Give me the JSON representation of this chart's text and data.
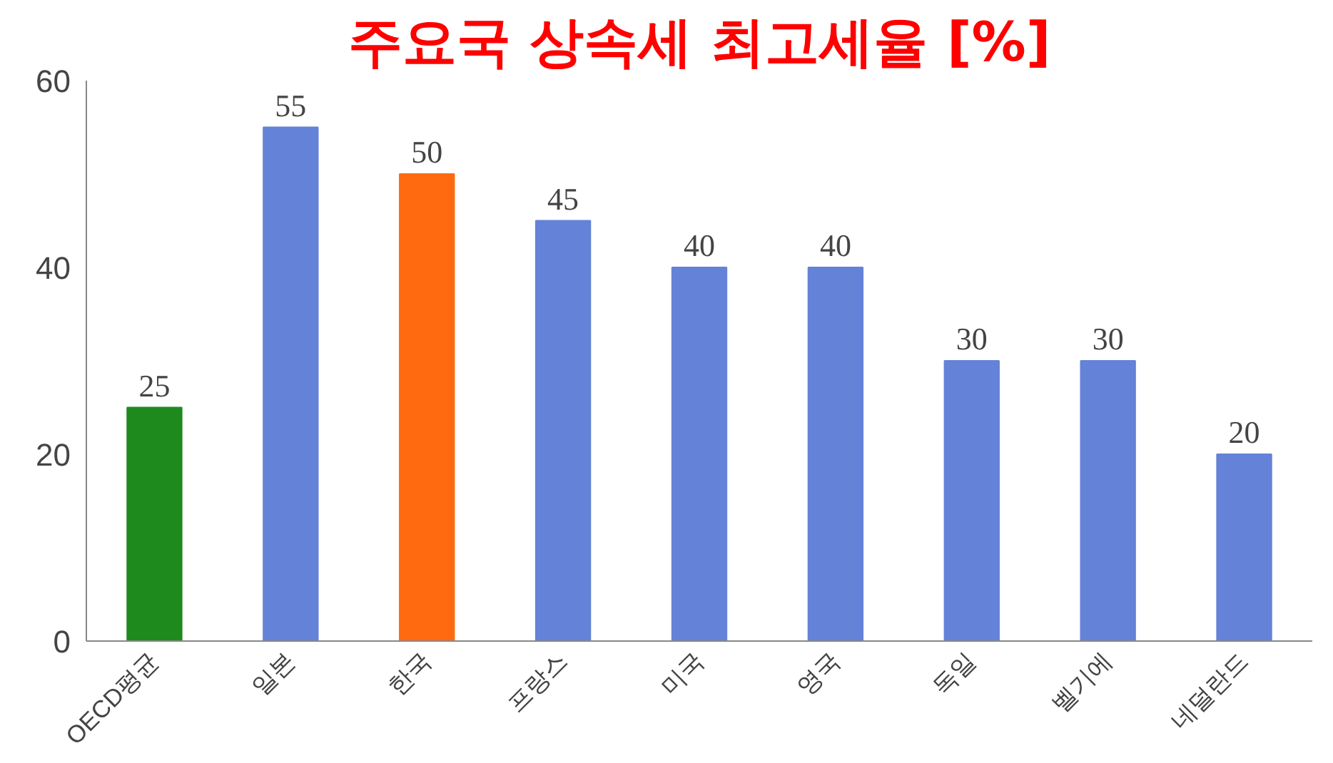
{
  "chart_data": {
    "type": "bar",
    "title": "주요국 상속세 최고세율 [%]",
    "categories": [
      "OECD평균",
      "일본",
      "한국",
      "프랑스",
      "미국",
      "영국",
      "독일",
      "벨기에",
      "네덜란드"
    ],
    "values": [
      25,
      55,
      50,
      45,
      40,
      40,
      30,
      30,
      20
    ],
    "colors": [
      "#1e8a1e",
      "#6482d8",
      "#ff6a10",
      "#6482d8",
      "#6482d8",
      "#6482d8",
      "#6482d8",
      "#6482d8",
      "#6482d8"
    ],
    "ylim": [
      0,
      60
    ],
    "yticks": [
      0,
      20,
      40,
      60
    ],
    "grid": false,
    "data_labels": true
  }
}
